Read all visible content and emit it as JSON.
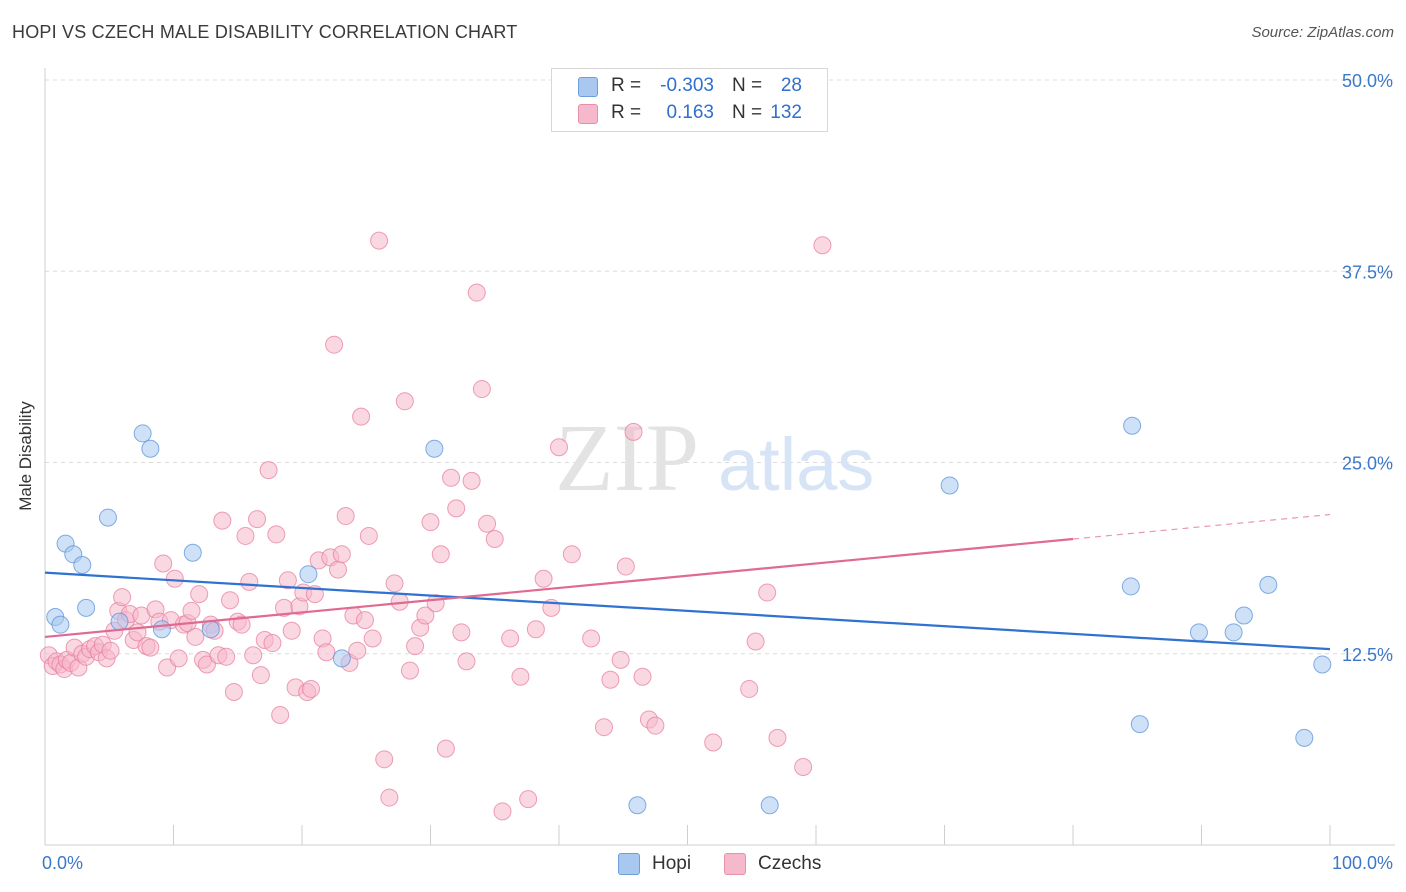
{
  "header": {
    "title": "HOPI VS CZECH MALE DISABILITY CORRELATION CHART",
    "source": "Source: ZipAtlas.com"
  },
  "watermark": {
    "zip": "ZIP",
    "atlas": "atlas"
  },
  "legend": {
    "rows": [
      {
        "r_label": "R =",
        "r_value": "-0.303",
        "n_label": "N =",
        "n_value": "28",
        "color": "#a8c8f0"
      },
      {
        "r_label": "R =",
        "r_value": "0.163",
        "n_label": "N =",
        "n_value": "132",
        "color": "#f6b8cb"
      }
    ]
  },
  "bottom_legend": [
    {
      "label": "Hopi",
      "color": "#a8c8f0"
    },
    {
      "label": "Czechs",
      "color": "#f6b8cb"
    }
  ],
  "chart_data": {
    "type": "scatter",
    "title": "HOPI VS CZECH MALE DISABILITY CORRELATION CHART",
    "xlabel": "",
    "ylabel": "Male Disability",
    "xlim": [
      0,
      100
    ],
    "ylim": [
      0,
      50
    ],
    "x_tick_labels": [
      "0.0%",
      "100.0%"
    ],
    "y_tick_labels": [
      "12.5%",
      "25.0%",
      "37.5%",
      "50.0%"
    ],
    "y_ticks": [
      12.5,
      25.0,
      37.5,
      50.0
    ],
    "grid": true,
    "series": [
      {
        "name": "Hopi",
        "color": "#5b93da",
        "fill": "#a8c8f0",
        "points": [
          [
            0.8,
            14.9
          ],
          [
            1.2,
            14.4
          ],
          [
            1.6,
            19.7
          ],
          [
            2.2,
            19.0
          ],
          [
            2.9,
            18.3
          ],
          [
            3.2,
            15.5
          ],
          [
            4.9,
            21.4
          ],
          [
            5.8,
            14.6
          ],
          [
            7.6,
            26.9
          ],
          [
            8.2,
            25.9
          ],
          [
            9.1,
            14.1
          ],
          [
            11.5,
            19.1
          ],
          [
            12.9,
            14.1
          ],
          [
            20.5,
            17.7
          ],
          [
            23.1,
            12.2
          ],
          [
            30.3,
            25.9
          ],
          [
            46.1,
            2.6
          ],
          [
            56.4,
            2.6
          ],
          [
            70.4,
            23.5
          ],
          [
            84.6,
            27.4
          ],
          [
            84.5,
            16.9
          ],
          [
            85.2,
            7.9
          ],
          [
            89.8,
            13.9
          ],
          [
            92.5,
            13.9
          ],
          [
            93.3,
            15.0
          ],
          [
            95.2,
            17.0
          ],
          [
            98.0,
            7.0
          ],
          [
            99.4,
            11.8
          ]
        ]
      },
      {
        "name": "Czechs",
        "color": "#e87fa0",
        "fill": "#f6b8cb",
        "points": [
          [
            0.3,
            12.4
          ],
          [
            0.6,
            11.7
          ],
          [
            0.9,
            12.0
          ],
          [
            1.2,
            11.8
          ],
          [
            1.5,
            11.5
          ],
          [
            1.7,
            12.1
          ],
          [
            2.0,
            11.9
          ],
          [
            2.3,
            12.9
          ],
          [
            2.6,
            11.6
          ],
          [
            2.9,
            12.5
          ],
          [
            3.2,
            12.3
          ],
          [
            3.5,
            12.8
          ],
          [
            3.9,
            13.0
          ],
          [
            4.2,
            12.6
          ],
          [
            4.5,
            13.1
          ],
          [
            4.8,
            12.2
          ],
          [
            5.1,
            12.7
          ],
          [
            5.4,
            14.0
          ],
          [
            5.7,
            15.3
          ],
          [
            6.0,
            16.2
          ],
          [
            6.3,
            14.7
          ],
          [
            6.6,
            15.1
          ],
          [
            6.9,
            13.4
          ],
          [
            7.2,
            13.9
          ],
          [
            7.5,
            15.0
          ],
          [
            7.9,
            13.0
          ],
          [
            8.2,
            12.9
          ],
          [
            8.6,
            15.4
          ],
          [
            8.9,
            14.6
          ],
          [
            9.2,
            18.4
          ],
          [
            9.5,
            11.6
          ],
          [
            9.8,
            14.7
          ],
          [
            10.1,
            17.4
          ],
          [
            10.4,
            12.2
          ],
          [
            10.8,
            14.4
          ],
          [
            11.1,
            14.5
          ],
          [
            11.4,
            15.3
          ],
          [
            11.7,
            13.6
          ],
          [
            12.0,
            16.4
          ],
          [
            12.3,
            12.1
          ],
          [
            12.6,
            11.8
          ],
          [
            12.9,
            14.4
          ],
          [
            13.2,
            14.0
          ],
          [
            13.5,
            12.4
          ],
          [
            13.8,
            21.2
          ],
          [
            14.1,
            12.3
          ],
          [
            14.4,
            16.0
          ],
          [
            14.7,
            10.0
          ],
          [
            15.0,
            14.6
          ],
          [
            15.3,
            14.4
          ],
          [
            15.6,
            20.2
          ],
          [
            15.9,
            17.2
          ],
          [
            16.2,
            12.4
          ],
          [
            16.5,
            21.3
          ],
          [
            16.8,
            11.1
          ],
          [
            17.1,
            13.4
          ],
          [
            17.4,
            24.5
          ],
          [
            17.7,
            13.2
          ],
          [
            18.0,
            20.3
          ],
          [
            18.3,
            8.5
          ],
          [
            18.6,
            15.5
          ],
          [
            18.9,
            17.3
          ],
          [
            19.2,
            14.0
          ],
          [
            19.5,
            10.3
          ],
          [
            19.8,
            15.6
          ],
          [
            20.1,
            16.5
          ],
          [
            20.4,
            10.0
          ],
          [
            20.7,
            10.2
          ],
          [
            21.0,
            16.4
          ],
          [
            21.3,
            18.6
          ],
          [
            21.6,
            13.5
          ],
          [
            21.9,
            12.6
          ],
          [
            22.2,
            18.8
          ],
          [
            22.5,
            32.7
          ],
          [
            22.8,
            18.0
          ],
          [
            23.1,
            19.0
          ],
          [
            23.4,
            21.5
          ],
          [
            23.7,
            11.9
          ],
          [
            24.0,
            15.0
          ],
          [
            24.3,
            12.7
          ],
          [
            24.6,
            28.0
          ],
          [
            24.9,
            14.7
          ],
          [
            25.2,
            20.2
          ],
          [
            25.5,
            13.5
          ],
          [
            26.0,
            39.5
          ],
          [
            26.4,
            5.6
          ],
          [
            26.8,
            3.1
          ],
          [
            27.2,
            17.1
          ],
          [
            27.6,
            15.9
          ],
          [
            28.0,
            29.0
          ],
          [
            28.4,
            11.4
          ],
          [
            28.8,
            13.0
          ],
          [
            29.2,
            14.2
          ],
          [
            29.6,
            15.0
          ],
          [
            30.0,
            21.1
          ],
          [
            30.4,
            15.8
          ],
          [
            30.8,
            19.0
          ],
          [
            31.2,
            6.3
          ],
          [
            31.6,
            24.0
          ],
          [
            32.0,
            22.0
          ],
          [
            32.4,
            13.9
          ],
          [
            32.8,
            12.0
          ],
          [
            33.2,
            23.8
          ],
          [
            33.6,
            36.1
          ],
          [
            34.0,
            29.8
          ],
          [
            34.4,
            21.0
          ],
          [
            35.0,
            20.0
          ],
          [
            35.6,
            2.2
          ],
          [
            36.2,
            13.5
          ],
          [
            37.0,
            11.0
          ],
          [
            37.6,
            3.0
          ],
          [
            38.2,
            14.1
          ],
          [
            38.8,
            17.4
          ],
          [
            39.4,
            15.5
          ],
          [
            40.0,
            26.0
          ],
          [
            41.0,
            19.0
          ],
          [
            42.5,
            13.5
          ],
          [
            43.5,
            7.7
          ],
          [
            44.0,
            10.8
          ],
          [
            44.8,
            12.1
          ],
          [
            45.2,
            18.2
          ],
          [
            45.8,
            27.0
          ],
          [
            46.5,
            11.0
          ],
          [
            47.0,
            8.2
          ],
          [
            47.5,
            7.8
          ],
          [
            52.0,
            6.7
          ],
          [
            54.8,
            10.2
          ],
          [
            55.3,
            13.3
          ],
          [
            56.2,
            16.5
          ],
          [
            57.0,
            7.0
          ],
          [
            59.0,
            5.1
          ],
          [
            60.5,
            39.2
          ]
        ]
      }
    ],
    "trendlines": [
      {
        "series": "Hopi",
        "x": [
          0,
          100
        ],
        "y": [
          17.8,
          12.8
        ],
        "style": "solid"
      },
      {
        "series": "Czechs",
        "x": [
          0,
          80
        ],
        "y": [
          13.6,
          20.0
        ],
        "style": "solid"
      },
      {
        "series": "Czechs",
        "x": [
          80,
          100
        ],
        "y": [
          20.0,
          21.6
        ],
        "style": "dashed"
      }
    ]
  }
}
